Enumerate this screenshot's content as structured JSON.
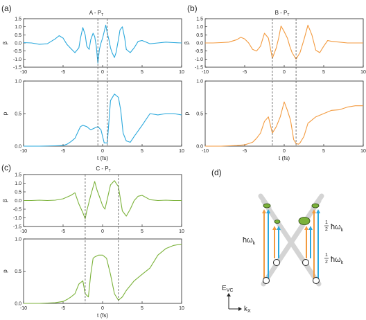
{
  "panels": [
    {
      "label": "(a)",
      "title_main": "A - P",
      "title_sub": "T",
      "color": "#2aa8dc",
      "dashed_t": [
        -0.6,
        0.6
      ],
      "beta": {
        "t": [
          -10,
          -9,
          -8,
          -7,
          -6,
          -5.5,
          -5,
          -4.5,
          -4,
          -3.5,
          -3,
          -2.8,
          -2.5,
          -2.2,
          -2,
          -1.7,
          -1.5,
          -1.2,
          -1,
          -0.8,
          -0.6,
          -0.4,
          -0.2,
          0,
          0.2,
          0.4,
          0.6,
          0.8,
          1,
          1.2,
          1.5,
          1.7,
          2,
          2.2,
          2.5,
          2.8,
          3,
          3.5,
          4,
          4.5,
          5,
          5.5,
          6,
          7,
          8,
          9,
          10
        ],
        "v": [
          0.02,
          0.0,
          -0.08,
          -0.05,
          0.25,
          0.45,
          0.3,
          -0.1,
          -0.35,
          -0.6,
          -0.3,
          0.3,
          0.95,
          0.5,
          -0.2,
          -0.4,
          0.2,
          0.6,
          0.4,
          -0.2,
          -1.25,
          -0.4,
          0.0,
          0.3,
          0.7,
          1.1,
          0.6,
          0.2,
          -0.3,
          -0.6,
          -0.9,
          -0.6,
          0.2,
          0.8,
          1.0,
          0.3,
          -0.4,
          -0.6,
          -0.3,
          0.1,
          0.15,
          0.05,
          -0.05,
          0.0,
          0.05,
          0.02,
          0.0
        ]
      },
      "p": {
        "t": [
          -10,
          -8,
          -6,
          -5,
          -4.5,
          -4,
          -3.5,
          -3,
          -2.8,
          -2.5,
          -2,
          -1.5,
          -1,
          -0.6,
          -0.2,
          0,
          0.2,
          0.6,
          1,
          1.5,
          2,
          2.3,
          2.6,
          3,
          3.5,
          4,
          5,
          6,
          7,
          8,
          9,
          10
        ],
        "v": [
          0,
          0,
          0.005,
          0.01,
          0.03,
          0.07,
          0.12,
          0.25,
          0.3,
          0.32,
          0.3,
          0.25,
          0.28,
          0.3,
          0.25,
          0.15,
          0.05,
          0.05,
          0.7,
          0.8,
          0.75,
          0.55,
          0.2,
          0.08,
          0.06,
          0.15,
          0.32,
          0.5,
          0.48,
          0.5,
          0.5,
          0.48
        ]
      }
    },
    {
      "label": "(b)",
      "title_main": "B - P",
      "title_sub": "T",
      "color": "#f39a3e",
      "dashed_t": [
        -1.5,
        1.5
      ],
      "beta": {
        "t": [
          -10,
          -9,
          -8,
          -7,
          -6,
          -5.5,
          -5,
          -4.5,
          -4,
          -3.5,
          -3,
          -2.5,
          -2,
          -1.5,
          -1,
          -0.7,
          -0.4,
          0,
          0.4,
          0.7,
          1,
          1.5,
          2,
          2.5,
          3,
          3.5,
          4,
          4.5,
          5,
          5.5,
          6,
          7,
          8,
          9,
          10
        ],
        "v": [
          0,
          0,
          0.02,
          0.05,
          0.2,
          0.35,
          0.25,
          0.0,
          -0.4,
          -0.5,
          -0.2,
          0.6,
          0.3,
          -0.95,
          -0.3,
          0.3,
          1.05,
          0.7,
          0.3,
          -0.2,
          -0.6,
          -1.0,
          -0.6,
          0.2,
          1.1,
          0.5,
          -0.45,
          -0.6,
          -0.2,
          0.15,
          0.1,
          0.05,
          0,
          0,
          0.0
        ]
      },
      "p": {
        "t": [
          -10,
          -8,
          -6,
          -5,
          -4,
          -3.5,
          -3,
          -2.5,
          -2,
          -1.5,
          -1,
          -0.5,
          0,
          0.4,
          0.8,
          1.2,
          1.5,
          1.8,
          2,
          2.5,
          3,
          4,
          5,
          6,
          7,
          8,
          9,
          10
        ],
        "v": [
          0,
          0,
          0.01,
          0.02,
          0.06,
          0.12,
          0.2,
          0.38,
          0.45,
          0.2,
          0.3,
          0.45,
          0.68,
          0.55,
          0.4,
          0.1,
          0.04,
          0.03,
          0.05,
          0.15,
          0.35,
          0.45,
          0.5,
          0.55,
          0.56,
          0.6,
          0.62,
          0.62
        ]
      }
    },
    {
      "label": "(c)",
      "title_main": "C - P",
      "title_sub": "T",
      "color": "#7bb23a",
      "dashed_t": [
        -2.2,
        2.0
      ],
      "beta": {
        "t": [
          -10,
          -9,
          -8,
          -7,
          -6,
          -5,
          -4.5,
          -4,
          -3.5,
          -3,
          -2.5,
          -2.2,
          -2,
          -1.5,
          -1,
          -0.7,
          -0.3,
          0,
          0.3,
          0.7,
          1,
          1.5,
          2,
          2.5,
          3,
          3.5,
          4,
          4.5,
          5,
          6,
          7,
          8,
          9,
          10
        ],
        "v": [
          0,
          0,
          0.02,
          0.0,
          0.02,
          0.1,
          0.2,
          0.3,
          0.45,
          -0.2,
          -0.7,
          -1.05,
          -0.6,
          0.3,
          1.1,
          0.6,
          0.1,
          -0.3,
          -0.5,
          0.3,
          0.9,
          1.15,
          0.8,
          -0.6,
          -0.9,
          -0.5,
          0.0,
          0.25,
          0.3,
          0.05,
          0.0,
          0.02,
          0,
          0.0
        ]
      },
      "p": {
        "t": [
          -10,
          -8,
          -6,
          -5,
          -4.5,
          -4,
          -3.5,
          -3,
          -2.5,
          -2.2,
          -1.8,
          -1.5,
          -1.2,
          -1,
          -0.5,
          0,
          0.5,
          1,
          1.5,
          2,
          2.5,
          3,
          4,
          5,
          6,
          7,
          8,
          9,
          10
        ],
        "v": [
          0,
          0,
          0.01,
          0.03,
          0.06,
          0.1,
          0.15,
          0.3,
          0.35,
          0.15,
          0.1,
          0.45,
          0.7,
          0.72,
          0.75,
          0.75,
          0.7,
          0.45,
          0.15,
          0.05,
          0.1,
          0.2,
          0.35,
          0.45,
          0.55,
          0.75,
          0.85,
          0.9,
          0.92
        ]
      }
    }
  ],
  "axes": {
    "beta_label": "β",
    "p_label": "p",
    "x_label": "t (fs)",
    "x_ticks": [
      "-10",
      "-5",
      "0",
      "5",
      "10"
    ],
    "beta_ticks": [
      "1.5",
      "1.0",
      "0.5",
      "0.0",
      "-0.5",
      "-1.0",
      "-1.5"
    ],
    "p_ticks": [
      "1.0",
      "0.5",
      "0.0"
    ]
  },
  "diagram": {
    "label": "(d)",
    "hw_label": "ħω",
    "hw_sub": "k",
    "half_num": "1",
    "half_den": "2",
    "half_hw": "ħω",
    "half_sub": "k",
    "energy_axis": "E",
    "energy_sub": "VC",
    "k_axis": "k",
    "k_sub": "X",
    "colors": {
      "orange": "#f39a3e",
      "blue": "#2aa8dc",
      "green": "#7bb23a",
      "gray": "#d4d4d4"
    }
  }
}
